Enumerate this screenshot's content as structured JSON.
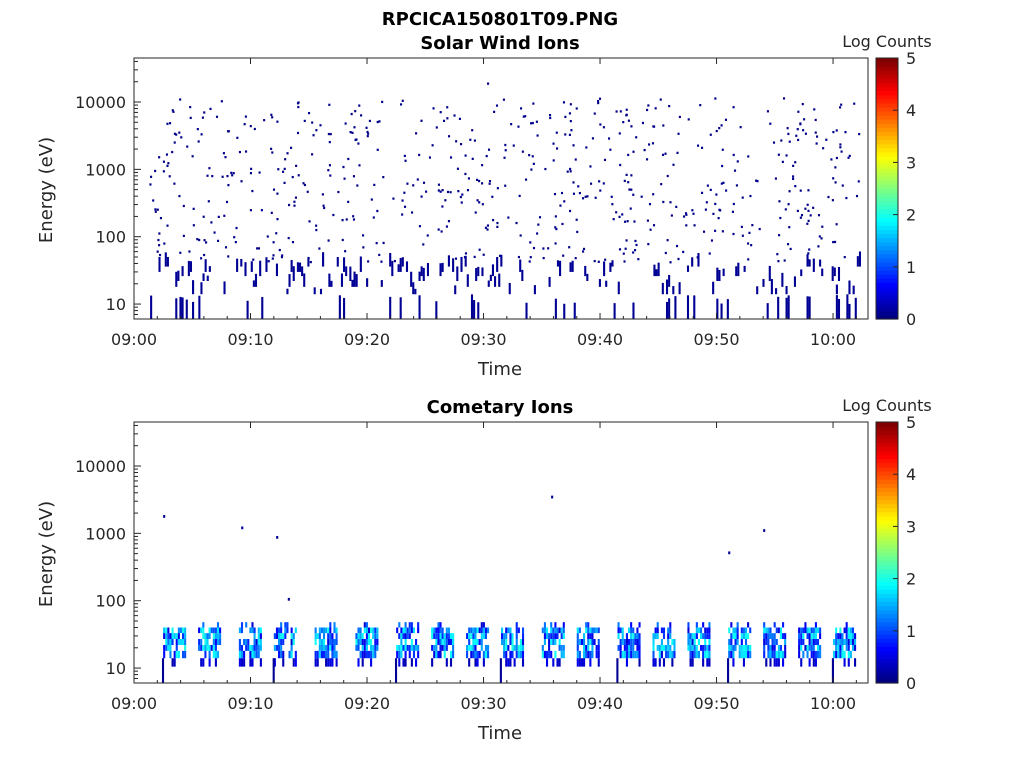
{
  "page_title": "RPCICA150801T09.PNG",
  "chart_data": [
    {
      "type": "heatmap",
      "title": "Solar Wind Ions",
      "xlabel": "Time",
      "ylabel": "Energy (eV)",
      "x_ticks": [
        "09:00",
        "09:10",
        "09:20",
        "09:30",
        "09:40",
        "09:50",
        "10:00"
      ],
      "x_range": [
        "09:00",
        "10:03"
      ],
      "y_scale": "log",
      "y_ticks": [
        "10",
        "100",
        "1000",
        "10000"
      ],
      "y_range": [
        6,
        45000
      ],
      "colorbar": {
        "label": "Log Counts",
        "ticks": [
          "0",
          "1",
          "2",
          "3",
          "4",
          "5"
        ],
        "range": [
          0,
          5
        ]
      },
      "low_band_gaps_minutes": [
        8,
        12,
        16,
        20,
        24,
        28,
        32,
        36,
        40,
        44,
        48,
        52,
        56,
        60
      ],
      "typical_log_counts": 0
    },
    {
      "type": "heatmap",
      "title": "Cometary Ions",
      "xlabel": "Time",
      "ylabel": "Energy (eV)",
      "x_ticks": [
        "09:00",
        "09:10",
        "09:20",
        "09:30",
        "09:40",
        "09:50",
        "10:00"
      ],
      "x_range": [
        "09:00",
        "10:03"
      ],
      "y_scale": "log",
      "y_ticks": [
        "10",
        "100",
        "1000",
        "10000"
      ],
      "y_range": [
        6,
        45000
      ],
      "colorbar": {
        "label": "Log Counts",
        "ticks": [
          "0",
          "1",
          "2",
          "3",
          "4",
          "5"
        ],
        "range": [
          0,
          5
        ]
      },
      "bursts_start_minutes": [
        2.5,
        5.5,
        9,
        12,
        15.5,
        19,
        22.5,
        25.5,
        28.5,
        31.5,
        35,
        38,
        41.5,
        44.5,
        47.5,
        51,
        54,
        57,
        60
      ],
      "isolated_points": [
        {
          "minute": 2.5,
          "energy_eV": 1700
        },
        {
          "minute": 9.2,
          "energy_eV": 1150
        },
        {
          "minute": 12.2,
          "energy_eV": 830
        },
        {
          "minute": 13.2,
          "energy_eV": 100
        },
        {
          "minute": 35.8,
          "energy_eV": 3300
        },
        {
          "minute": 51,
          "energy_eV": 490
        },
        {
          "minute": 54,
          "energy_eV": 1050
        }
      ]
    }
  ]
}
